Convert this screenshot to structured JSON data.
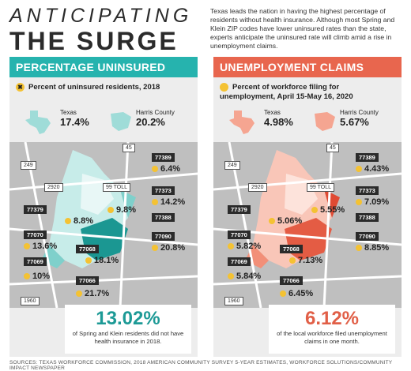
{
  "header": {
    "title_line1": "ANTICIPATING",
    "title_line2": "THE SURGE",
    "intro": "Texas leads the nation in having the highest percentage of residents without health insurance. Although most Spring and Klein ZIP codes have lower uninsured rates than the state, experts anticipate the uninsured rate will climb amid a rise in unemployment claims."
  },
  "left_panel": {
    "heading": "PERCENTAGE UNINSURED",
    "subheading": "Percent of uninsured residents, 2018",
    "state_label": "Texas",
    "state_value": "17.4%",
    "county_label": "Harris County",
    "county_value": "20.2%",
    "zips": [
      {
        "zip": "77389",
        "value": "6.4%"
      },
      {
        "zip": "77373",
        "value": "14.2%"
      },
      {
        "zip": "77379",
        "value": "8.8%"
      },
      {
        "zip": "77388",
        "value": "9.8%"
      },
      {
        "zip": "77070",
        "value": "13.6%"
      },
      {
        "zip": "77090",
        "value": "20.8%"
      },
      {
        "zip": "77068",
        "value": "18.1%"
      },
      {
        "zip": "77069",
        "value": "10%"
      },
      {
        "zip": "77066",
        "value": "21.7%"
      }
    ],
    "big_number": "13.02%",
    "big_text": "of Spring and Klein residents did not have health insurance in 2018."
  },
  "right_panel": {
    "heading": "UNEMPLOYMENT CLAIMS",
    "subheading": "Percent of workforce filing for unemployment, April 15-May 16, 2020",
    "state_label": "Texas",
    "state_value": "4.98%",
    "county_label": "Harris County",
    "county_value": "5.67%",
    "zips": [
      {
        "zip": "77389",
        "value": "4.43%"
      },
      {
        "zip": "77373",
        "value": "7.09%"
      },
      {
        "zip": "77379",
        "value": "5.06%"
      },
      {
        "zip": "77388",
        "value": "5.55%"
      },
      {
        "zip": "77070",
        "value": "5.82%"
      },
      {
        "zip": "77090",
        "value": "8.85%"
      },
      {
        "zip": "77068",
        "value": "7.13%"
      },
      {
        "zip": "77069",
        "value": "5.84%"
      },
      {
        "zip": "77066",
        "value": "6.45%"
      }
    ],
    "big_number": "6.12%",
    "big_text": "of the local workforce filed unemployment claims in one month."
  },
  "roads": [
    "45",
    "249",
    "2920",
    "99 TOLL",
    "1960"
  ],
  "source": "SOURCES: TEXAS WORKFORCE COMMISSION, 2018 AMERICAN COMMUNITY SURVEY 5-YEAR ESTIMATES, WORKFORCE SOLUTIONS/COMMUNITY IMPACT NEWSPAPER",
  "colors": {
    "teal": "#26b3ae",
    "coral": "#e8664e",
    "yellow": "#f4c233"
  }
}
